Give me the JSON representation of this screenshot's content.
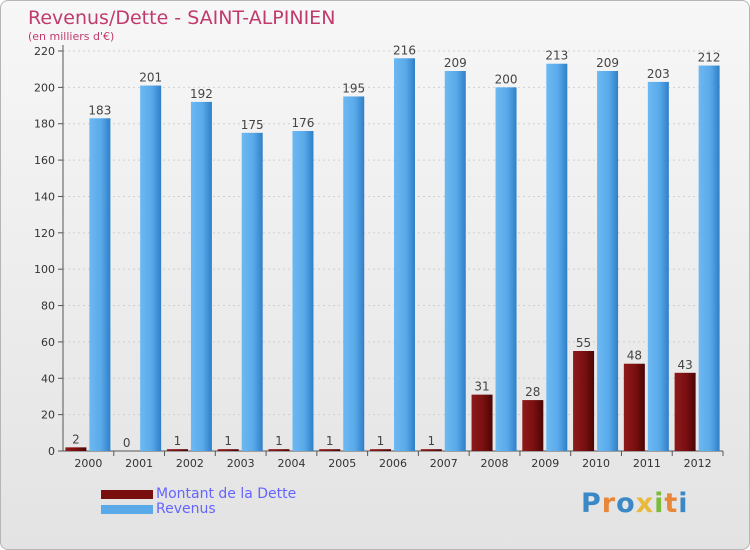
{
  "title": "Revenus/Dette - SAINT-ALPINIEN",
  "subtitle": "(en milliers d'€)",
  "logo": {
    "text": "Proxiti",
    "letter_colors": [
      "#3b88c6",
      "#e8873a",
      "#3b88c6",
      "#e8b93a",
      "#7dbb3a",
      "#e8873a",
      "#3b88c6"
    ]
  },
  "colors": {
    "debt": "#7a0f10",
    "revenue": "#5aaaea",
    "axis": "#555555",
    "grid": "#d0d0d0",
    "title": "#c03a6e",
    "legend_text": "#6464ff"
  },
  "chart_data": {
    "type": "bar",
    "categories": [
      "2000",
      "2001",
      "2002",
      "2003",
      "2004",
      "2005",
      "2006",
      "2007",
      "2008",
      "2009",
      "2010",
      "2011",
      "2012"
    ],
    "series": [
      {
        "name": "Montant de la Dette",
        "values": [
          2,
          0,
          1,
          1,
          1,
          1,
          1,
          1,
          31,
          28,
          55,
          48,
          43
        ]
      },
      {
        "name": "Revenus",
        "values": [
          183,
          201,
          192,
          175,
          176,
          195,
          216,
          209,
          200,
          213,
          209,
          203,
          212
        ]
      }
    ],
    "yticks": [
      0,
      20,
      40,
      60,
      80,
      100,
      120,
      140,
      160,
      180,
      200,
      220
    ],
    "ylim": [
      0,
      220
    ],
    "grid": true,
    "legend_position": "bottom-left"
  }
}
